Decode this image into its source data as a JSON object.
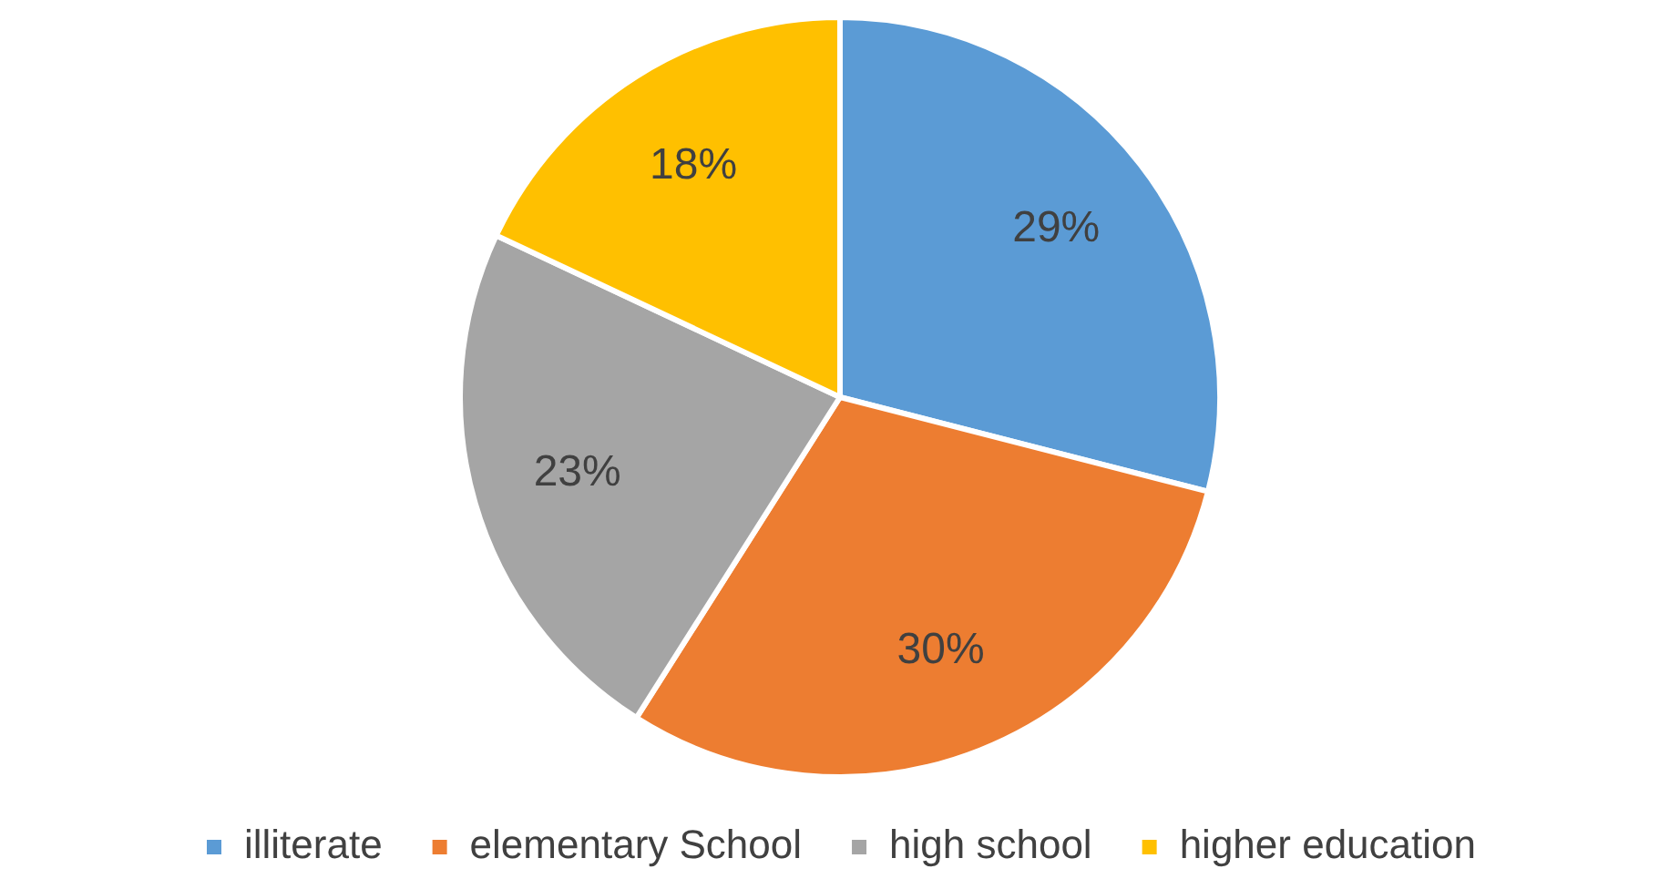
{
  "chart_data": {
    "type": "pie",
    "categories": [
      "illiterate",
      "elementary School",
      "high school",
      "higher education"
    ],
    "values": [
      29,
      30,
      23,
      18
    ],
    "value_labels": [
      "29%",
      "30%",
      "23%",
      "18%"
    ],
    "colors": [
      "#5b9bd5",
      "#ed7d31",
      "#a5a5a5",
      "#ffc000"
    ],
    "legend": "bottom"
  }
}
